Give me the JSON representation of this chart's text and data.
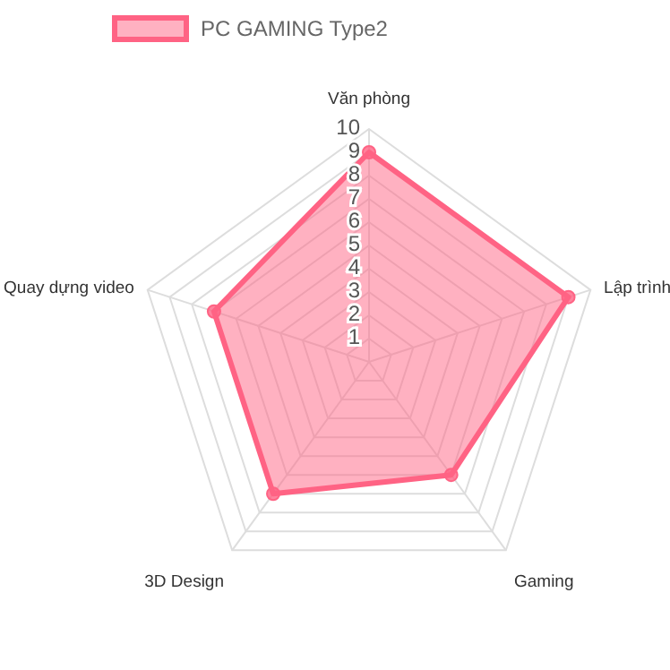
{
  "chart_data": {
    "type": "radar",
    "categories": [
      "Văn phòng",
      "Lập trình",
      "Gaming",
      "3D Design",
      "Quay dựng video"
    ],
    "series": [
      {
        "name": "PC GAMING Type2",
        "color": "#ff6384",
        "values": [
          9,
          9,
          6,
          7,
          7
        ]
      }
    ],
    "ylim": [
      0,
      10
    ],
    "yticks": [
      1,
      2,
      3,
      4,
      5,
      6,
      7,
      8,
      9,
      10
    ],
    "grid": true,
    "legend": "top",
    "marker": "circle"
  }
}
